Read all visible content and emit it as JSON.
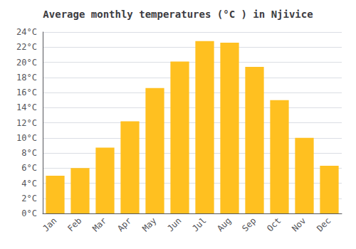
{
  "chart_data": {
    "type": "bar",
    "title": "Average monthly temperatures (°C ) in Njivice",
    "categories": [
      "Jan",
      "Feb",
      "Mar",
      "Apr",
      "May",
      "Jun",
      "Jul",
      "Aug",
      "Sep",
      "Oct",
      "Nov",
      "Dec"
    ],
    "values": [
      5.0,
      6.0,
      8.7,
      12.2,
      16.6,
      20.1,
      22.8,
      22.6,
      19.4,
      15.0,
      10.0,
      6.3
    ],
    "color": "#FFC020",
    "ylim": [
      0,
      24
    ],
    "yticks": [
      {
        "value": 0,
        "label": "0°C"
      },
      {
        "value": 2,
        "label": "2°C"
      },
      {
        "value": 4,
        "label": "4°C"
      },
      {
        "value": 6,
        "label": "6°C"
      },
      {
        "value": 8,
        "label": "8°C"
      },
      {
        "value": 10,
        "label": "10°C"
      },
      {
        "value": 12,
        "label": "12°C"
      },
      {
        "value": 14,
        "label": "14°C"
      },
      {
        "value": 16,
        "label": "16°C"
      },
      {
        "value": 18,
        "label": "18°C"
      },
      {
        "value": 20,
        "label": "20°C"
      },
      {
        "value": 22,
        "label": "22°C"
      },
      {
        "value": 24,
        "label": "24°C"
      }
    ],
    "grid": true
  }
}
